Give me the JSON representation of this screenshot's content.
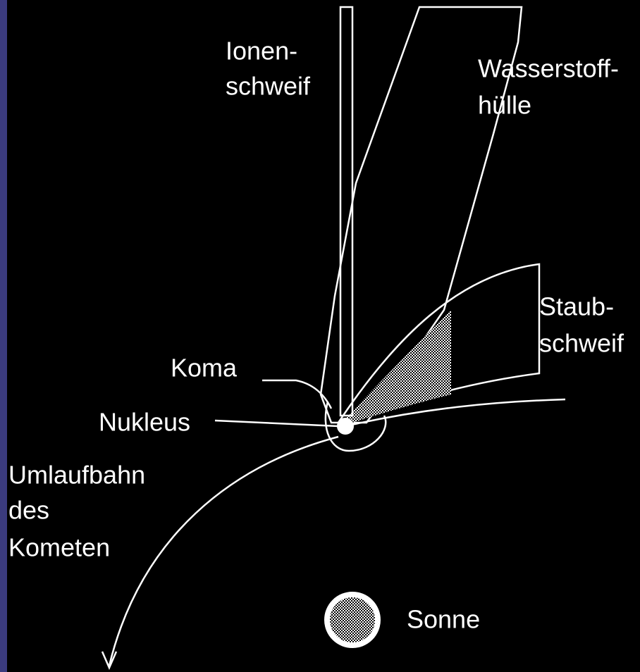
{
  "labels": {
    "ion_tail": [
      "Ionen-",
      "schweif"
    ],
    "hydrogen_envelope": [
      "Wasserstoff-",
      "hülle"
    ],
    "dust_tail": [
      "Staub-",
      "schweif"
    ],
    "coma": "Koma",
    "nucleus": "Nukleus",
    "orbit": [
      "Umlaufbahn",
      "des",
      "Kometen"
    ],
    "sun": "Sonne"
  }
}
